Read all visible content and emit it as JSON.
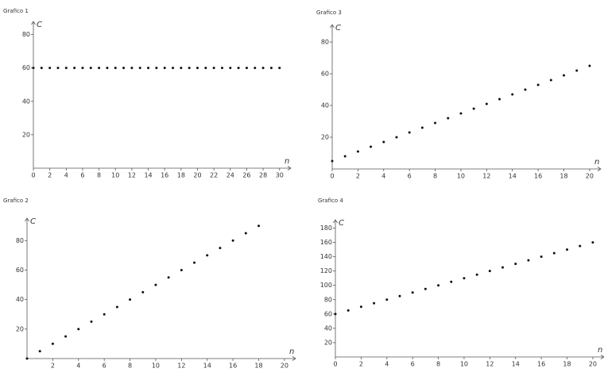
{
  "chart_data": [
    {
      "type": "scatter",
      "title": "Grafico 1",
      "x_label": "n",
      "y_label": "C",
      "x": [
        0,
        1,
        2,
        3,
        4,
        5,
        6,
        7,
        8,
        9,
        10,
        11,
        12,
        13,
        14,
        15,
        16,
        17,
        18,
        19,
        20,
        21,
        22,
        23,
        24,
        25,
        26,
        27,
        28,
        29,
        30
      ],
      "values": [
        60,
        60,
        60,
        60,
        60,
        60,
        60,
        60,
        60,
        60,
        60,
        60,
        60,
        60,
        60,
        60,
        60,
        60,
        60,
        60,
        60,
        60,
        60,
        60,
        60,
        60,
        60,
        60,
        60,
        60,
        60
      ],
      "color": "#111111",
      "xlim": [
        0,
        30.8
      ],
      "ylim": [
        0,
        85
      ],
      "xticks": [
        0,
        2,
        4,
        6,
        8,
        10,
        12,
        14,
        16,
        18,
        20,
        22,
        24,
        26,
        28,
        30
      ],
      "yticks": [
        20,
        40,
        60,
        80
      ]
    },
    {
      "type": "scatter",
      "title": "Grafico 3",
      "x_label": "n",
      "y_label": "C",
      "x": [
        0,
        1,
        2,
        3,
        4,
        5,
        6,
        7,
        8,
        9,
        10,
        11,
        12,
        13,
        14,
        15,
        16,
        17,
        18,
        19,
        20
      ],
      "values": [
        5,
        8,
        11,
        14,
        17,
        20,
        23,
        26,
        29,
        32,
        35,
        38,
        41,
        44,
        47,
        50,
        53,
        56,
        59,
        62,
        65
      ],
      "color": "#111111",
      "xlim": [
        0,
        20.5
      ],
      "ylim": [
        0,
        88
      ],
      "xticks": [
        0,
        2,
        4,
        6,
        8,
        10,
        12,
        14,
        16,
        18,
        20
      ],
      "yticks": [
        20,
        40,
        60,
        80
      ]
    },
    {
      "type": "scatter",
      "title": "Grafico 2",
      "x_label": "n",
      "y_label": "C",
      "x": [
        0,
        1,
        2,
        3,
        4,
        5,
        6,
        7,
        8,
        9,
        10,
        11,
        12,
        13,
        14,
        15,
        16,
        17,
        18
      ],
      "values": [
        0,
        5,
        10,
        15,
        20,
        25,
        30,
        35,
        40,
        45,
        50,
        55,
        60,
        65,
        70,
        75,
        80,
        85,
        90
      ],
      "color": "#111111",
      "xlim": [
        0,
        20.5
      ],
      "ylim": [
        0,
        92
      ],
      "xticks": [
        2,
        4,
        6,
        8,
        10,
        12,
        14,
        16,
        18,
        20
      ],
      "yticks": [
        20,
        40,
        60,
        80
      ]
    },
    {
      "type": "scatter",
      "title": "Grafico 4",
      "x_label": "n",
      "y_label": "C",
      "x": [
        0,
        1,
        2,
        3,
        4,
        5,
        6,
        7,
        8,
        9,
        10,
        11,
        12,
        13,
        14,
        15,
        16,
        17,
        18,
        19,
        20
      ],
      "values": [
        60,
        65,
        70,
        75,
        80,
        85,
        90,
        95,
        100,
        105,
        110,
        115,
        120,
        125,
        130,
        135,
        140,
        145,
        150,
        155,
        160
      ],
      "color": "#111111",
      "xlim": [
        0,
        20.5
      ],
      "ylim": [
        0,
        185
      ],
      "xticks": [
        0,
        2,
        4,
        6,
        8,
        10,
        12,
        14,
        16,
        18,
        20
      ],
      "yticks": [
        20,
        40,
        60,
        80,
        100,
        120,
        140,
        160,
        180
      ]
    }
  ]
}
